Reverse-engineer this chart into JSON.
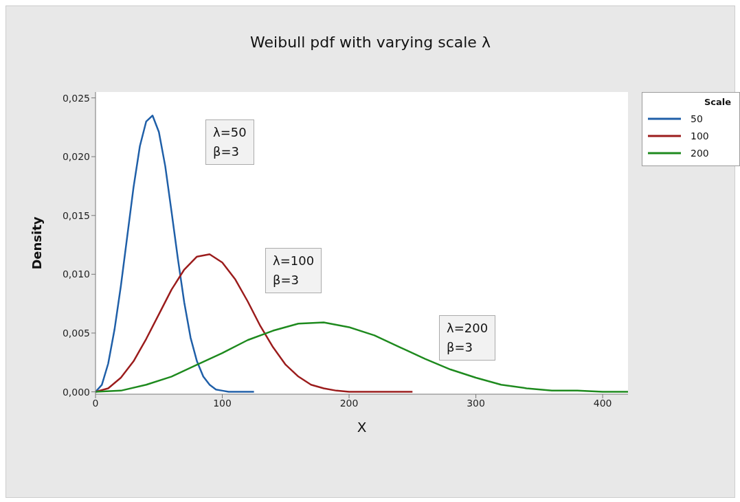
{
  "chart_data": {
    "type": "line",
    "title": "Weibull pdf with varying scale λ",
    "xlabel": "X",
    "ylabel": "Density",
    "legend_title": "Scale",
    "legend": "top right",
    "marker": "none",
    "line_style": "solid",
    "grid": false,
    "xlim": [
      0,
      420
    ],
    "xticks": [
      0,
      100,
      200,
      300,
      400
    ],
    "ylim": [
      -0.0002,
      0.0255
    ],
    "yticks": [
      {
        "value": 0,
        "label": "0,000"
      },
      {
        "value": 0.005,
        "label": "0,005"
      },
      {
        "value": 0.01,
        "label": "0,010"
      },
      {
        "value": 0.015,
        "label": "0,015"
      },
      {
        "value": 0.02,
        "label": "0,020"
      },
      {
        "value": 0.025,
        "label": "0,025"
      }
    ],
    "annotations": [
      "λ=50\nβ=3",
      "λ=100\nβ=3",
      "λ=200\nβ=3"
    ],
    "series": [
      {
        "name": "50",
        "color": "#1f5fa8",
        "x": [
          0,
          5,
          10,
          15,
          20,
          25,
          30,
          35,
          40,
          45,
          50,
          55,
          60,
          65,
          70,
          75,
          80,
          85,
          90,
          95,
          100,
          105,
          110,
          115,
          120,
          125
        ],
        "values": [
          0,
          0.0006,
          0.0024,
          0.0053,
          0.009,
          0.0132,
          0.0174,
          0.0209,
          0.023,
          0.0235,
          0.0221,
          0.0192,
          0.0153,
          0.0113,
          0.0076,
          0.0046,
          0.0026,
          0.0013,
          0.0006,
          0.0002,
          0.0001,
          0,
          0,
          0,
          0,
          0
        ]
      },
      {
        "name": "100",
        "color": "#9b1c1c",
        "x": [
          0,
          10,
          20,
          30,
          40,
          50,
          60,
          70,
          80,
          90,
          100,
          110,
          120,
          130,
          140,
          150,
          160,
          170,
          180,
          190,
          200,
          210,
          220,
          230,
          240,
          250
        ],
        "values": [
          0,
          0.0003,
          0.0012,
          0.0026,
          0.0045,
          0.0066,
          0.0087,
          0.0104,
          0.0115,
          0.0117,
          0.011,
          0.0096,
          0.0077,
          0.0056,
          0.0038,
          0.0023,
          0.0013,
          0.0006,
          0.0003,
          0.0001,
          0,
          0,
          0,
          0,
          0,
          0
        ]
      },
      {
        "name": "200",
        "color": "#1e8a1e",
        "x": [
          0,
          20,
          40,
          60,
          80,
          100,
          120,
          140,
          160,
          180,
          200,
          220,
          240,
          260,
          280,
          300,
          320,
          340,
          360,
          380,
          400,
          420
        ],
        "values": [
          0,
          0.0001,
          0.0006,
          0.0013,
          0.0023,
          0.0033,
          0.0044,
          0.0052,
          0.0058,
          0.0059,
          0.0055,
          0.0048,
          0.0038,
          0.0028,
          0.0019,
          0.0012,
          0.0006,
          0.0003,
          0.0001,
          0.0001,
          0,
          0
        ]
      }
    ]
  }
}
